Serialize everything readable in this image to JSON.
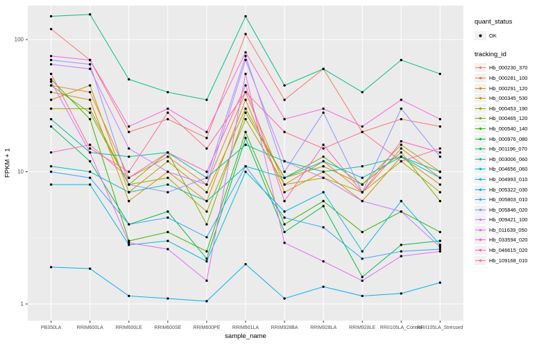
{
  "figure": {
    "background": "#FFFFFF",
    "panel_bg": "#EBEBEB",
    "grid_major": "#FFFFFF",
    "grid_minor": "#F5F5F5",
    "tick_color": "#333333",
    "axis_text_color": "#4D4D4D",
    "point_color": "#000000"
  },
  "legend": {
    "quant_status": {
      "title": "quant_status",
      "items": [
        {
          "label": "OK",
          "shape": "filled-point",
          "color": "#000000"
        }
      ]
    },
    "tracking": {
      "title": "tracking_id"
    }
  },
  "chart_data": {
    "type": "line",
    "title": "",
    "xlabel": "sample_name",
    "ylabel": "FPKM + 1",
    "y_scale": "log10",
    "ylim": [
      1,
      200
    ],
    "grid": true,
    "legend_position": "right",
    "point_shape": "circle",
    "quant_status": "OK",
    "y_ticks": [
      {
        "value": 1,
        "label": "1"
      },
      {
        "value": 10,
        "label": "10"
      },
      {
        "value": 100,
        "label": "100"
      }
    ],
    "y_minor_ticks": [
      3.162,
      31.62
    ],
    "categories": [
      "PB350LA",
      "RRIM600LA",
      "RRIM600LE",
      "RRIM600SE",
      "RRIM600PE",
      "RRIM901LA",
      "RRIM928BA",
      "RRIM928LA",
      "RRIM928LE",
      "RRII105LA_Control",
      "RRII105LA_Stressed"
    ],
    "series": [
      {
        "name": "Hb_000230_370",
        "color": "#F8766D",
        "values": [
          120,
          70,
          20,
          25,
          18,
          110,
          35,
          60,
          20,
          25,
          22
        ]
      },
      {
        "name": "Hb_000281_100",
        "color": "#EA8331",
        "values": [
          45,
          40,
          9,
          13,
          8,
          40,
          8,
          12,
          7,
          15,
          9
        ]
      },
      {
        "name": "Hb_000291_120",
        "color": "#D89000",
        "values": [
          40,
          35,
          6,
          10,
          6,
          35,
          7,
          10,
          6,
          13,
          8
        ]
      },
      {
        "name": "Hb_000345_530",
        "color": "#C09B00",
        "values": [
          35,
          45,
          7,
          12,
          7,
          30,
          9,
          11,
          8,
          16,
          10
        ]
      },
      {
        "name": "Hb_000453_190",
        "color": "#A3A500",
        "values": [
          30,
          30,
          8,
          9,
          5,
          25,
          8,
          9,
          7,
          12,
          7
        ]
      },
      {
        "name": "Hb_000465_120",
        "color": "#7CAE00",
        "values": [
          45,
          28,
          8,
          14,
          4,
          28,
          9,
          13,
          8,
          14,
          6
        ]
      },
      {
        "name": "Hb_000540_140",
        "color": "#39B600",
        "values": [
          50,
          25,
          3,
          3.5,
          2.5,
          20,
          4,
          6,
          3.5,
          5,
          3.5
        ]
      },
      {
        "name": "Hb_000976_080",
        "color": "#00BB4E",
        "values": [
          22,
          12,
          4,
          5,
          2.2,
          18,
          3.5,
          5.5,
          1.6,
          2.8,
          3
        ]
      },
      {
        "name": "Hb_001196_070",
        "color": "#00BF7D",
        "values": [
          150,
          155,
          50,
          40,
          35,
          150,
          45,
          60,
          40,
          70,
          55
        ]
      },
      {
        "name": "Hb_003006_060",
        "color": "#00C1A3",
        "values": [
          25,
          14,
          13,
          14,
          9,
          16,
          12,
          10,
          11,
          13,
          10
        ]
      },
      {
        "name": "Hb_004656_060",
        "color": "#00BFC4",
        "values": [
          11,
          10,
          7,
          8,
          6,
          11,
          9,
          12,
          9,
          13,
          9
        ]
      },
      {
        "name": "Hb_004993_010",
        "color": "#00BAE0",
        "values": [
          8,
          8,
          2.8,
          3,
          2.1,
          10,
          5,
          7,
          2.5,
          6,
          2.8
        ]
      },
      {
        "name": "Hb_005322_030",
        "color": "#00B0F6",
        "values": [
          1.9,
          1.85,
          1.15,
          1.1,
          1.05,
          2.0,
          1.1,
          1.35,
          1.15,
          1.2,
          1.45
        ]
      },
      {
        "name": "Hb_005803_010",
        "color": "#35A2FF",
        "values": [
          10,
          9,
          4,
          4.5,
          3.2,
          11,
          4.5,
          3.8,
          2.2,
          2.5,
          2.6
        ]
      },
      {
        "name": "Hb_005846_020",
        "color": "#9590FF",
        "values": [
          70,
          65,
          8,
          7,
          9,
          75,
          10,
          28,
          7,
          30,
          13
        ]
      },
      {
        "name": "Hb_009421_100",
        "color": "#C77CFF",
        "values": [
          65,
          60,
          15,
          10,
          8,
          70,
          12,
          9,
          6,
          5,
          2.7
        ]
      },
      {
        "name": "Hb_011639_050",
        "color": "#E76BF3",
        "values": [
          48,
          14,
          2.9,
          2.6,
          1.5,
          55,
          2.9,
          2.1,
          1.5,
          2.3,
          2.5
        ]
      },
      {
        "name": "Hb_033594_020",
        "color": "#FA62DB",
        "values": [
          75,
          70,
          22,
          30,
          20,
          80,
          25,
          30,
          22,
          35,
          25
        ]
      },
      {
        "name": "Hb_046615_020",
        "color": "#FF62BC",
        "values": [
          14,
          16,
          9,
          14,
          10,
          45,
          6,
          16,
          7,
          17,
          14
        ]
      },
      {
        "name": "Hb_109168_010",
        "color": "#FF6A98",
        "values": [
          55,
          15,
          10,
          28,
          15,
          40,
          20,
          15,
          20,
          12,
          15
        ]
      }
    ]
  }
}
